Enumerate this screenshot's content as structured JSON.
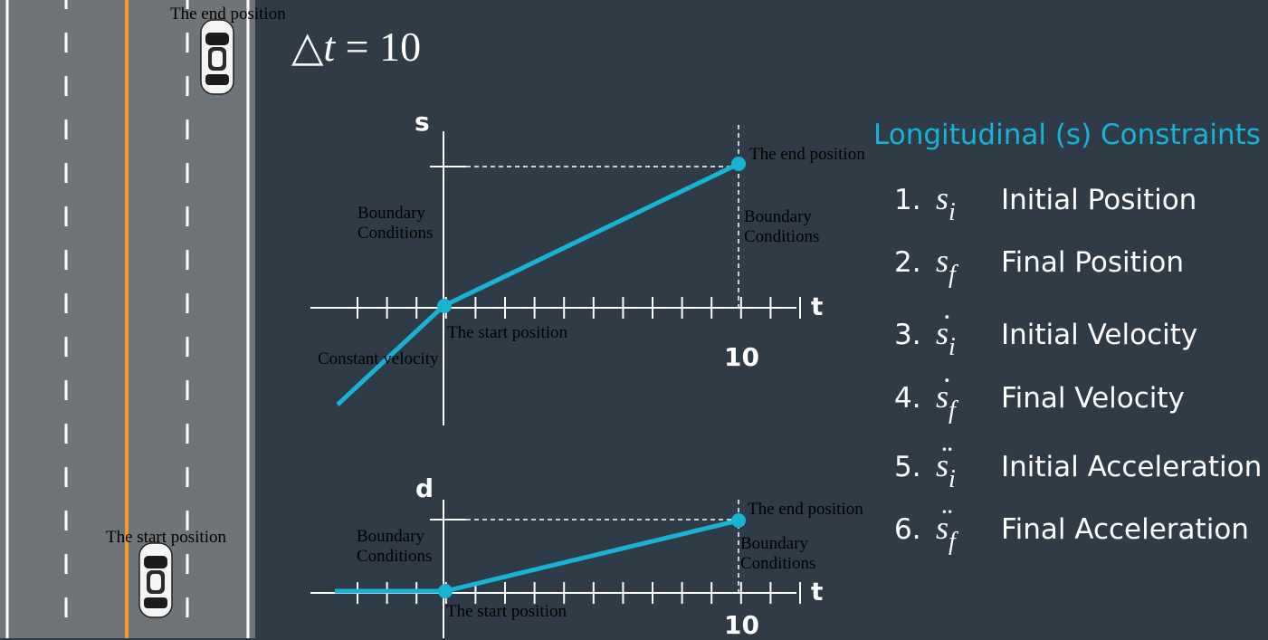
{
  "road": {
    "end_label": "The end position",
    "start_label": "The start position"
  },
  "delta_t": {
    "symbol": "△",
    "variable": "t",
    "equals": "=",
    "value": "10"
  },
  "top_chart": {
    "axis_y": "s",
    "axis_x": "t",
    "tick_value": "10",
    "end_label": "The end position",
    "start_label": "The start position",
    "left_boundary": "Boundary\nConditions",
    "right_boundary": "Boundary\nConditions",
    "velocity_label": "Constant velocity"
  },
  "bottom_chart": {
    "axis_y": "d",
    "axis_x": "t",
    "tick_value": "10",
    "end_label": "The end position",
    "start_label": "The start position",
    "left_boundary": "Boundary\nConditions",
    "right_boundary": "Boundary\nConditions"
  },
  "constraints": {
    "title": "Longitudinal (s) Constraints",
    "items": [
      {
        "num": "1.",
        "sym": "s",
        "sub": "i",
        "dots": "",
        "name": "Initial Position"
      },
      {
        "num": "2.",
        "sym": "s",
        "sub": "f",
        "dots": "",
        "name": "Final Position"
      },
      {
        "num": "3.",
        "sym": "s",
        "sub": "i",
        "dots": "˙",
        "name": "Initial Velocity"
      },
      {
        "num": "4.",
        "sym": "s",
        "sub": "f",
        "dots": "˙",
        "name": "Final Velocity"
      },
      {
        "num": "5.",
        "sym": "s",
        "sub": "i",
        "dots": "¨",
        "name": "Initial Acceleration"
      },
      {
        "num": "6.",
        "sym": "s",
        "sub": "f",
        "dots": "¨",
        "name": "Final Acceleration"
      }
    ]
  },
  "colors": {
    "background": "#2f3b47",
    "road": "#6f7479",
    "center_line": "#f29a2e",
    "accent": "#16b3d4",
    "lane_line": "#ffffff"
  }
}
